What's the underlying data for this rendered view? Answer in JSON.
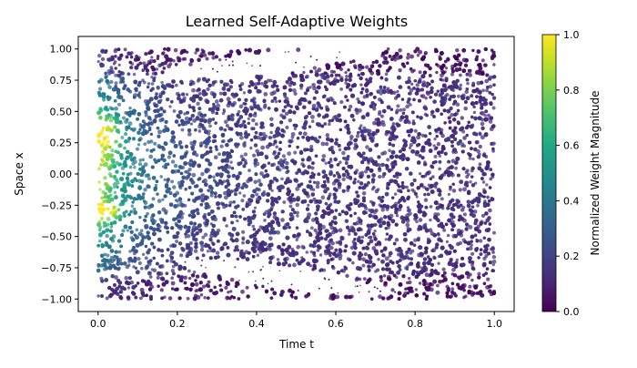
{
  "chart_data": {
    "type": "scatter",
    "title": "Learned Self-Adaptive Weights",
    "xlabel": "Time t",
    "ylabel": "Space x",
    "xlim": [
      -0.05,
      1.05
    ],
    "ylim": [
      -1.1,
      1.1
    ],
    "x_ticks": [
      0.0,
      0.2,
      0.4,
      0.6,
      0.8,
      1.0
    ],
    "x_tick_labels": [
      "0.0",
      "0.2",
      "0.4",
      "0.6",
      "0.8",
      "1.0"
    ],
    "y_ticks": [
      1.0,
      0.75,
      0.5,
      0.25,
      0.0,
      -0.25,
      -0.5,
      -0.75,
      -1.0
    ],
    "y_tick_labels": [
      "1.00",
      "0.75",
      "0.50",
      "0.25",
      "0.00",
      "−0.25",
      "−0.50",
      "−0.75",
      "−1.00"
    ],
    "point_domain": {
      "t": [
        0.0,
        1.0
      ],
      "x": [
        -1.0,
        1.0
      ]
    },
    "colorbar": {
      "label": "Normalized Weight Magnitude",
      "range": [
        0.0,
        1.0
      ],
      "ticks": [
        0.0,
        0.2,
        0.4,
        0.6,
        0.8,
        1.0
      ],
      "tick_labels": [
        "0.0",
        "0.2",
        "0.4",
        "0.6",
        "0.8",
        "1.0"
      ],
      "colormap": "viridis"
    },
    "marker_alpha": 0.75,
    "grid": false,
    "legend": "none",
    "regions": [
      {
        "description": "sparse white bands (low point density)",
        "shape": "upper branch",
        "t_range": [
          0.15,
          0.7
        ],
        "x_range": [
          0.7,
          1.0
        ]
      },
      {
        "description": "sparse white bands (low point density)",
        "shape": "lower branch",
        "t_range": [
          0.2,
          0.75
        ],
        "x_range": [
          -1.0,
          -0.6
        ]
      },
      {
        "description": "high-weight cluster",
        "t_range": [
          0.0,
          0.05
        ],
        "x_range": [
          0.2,
          0.45
        ],
        "weight": 0.85
      },
      {
        "description": "high-weight cluster",
        "t_range": [
          0.0,
          0.05
        ],
        "x_range": [
          -0.35,
          -0.25
        ],
        "weight": 0.95
      }
    ]
  }
}
